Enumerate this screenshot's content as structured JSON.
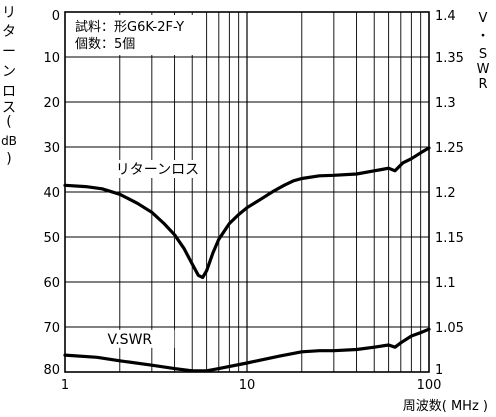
{
  "chart_data": {
    "type": "line",
    "x_scale": "log",
    "xlim": [
      1,
      100
    ],
    "ylim_left": [
      80,
      0
    ],
    "ylim_right": [
      1.0,
      1.4
    ],
    "ylabel_left_chars": [
      "リ",
      "タ",
      "ー",
      "ン",
      "ロ",
      "ス",
      "(",
      "dB",
      ")"
    ],
    "ylabel_right_chars": [
      "V",
      "・",
      "S",
      "W",
      "R"
    ],
    "xlabel": "周波数( MHz )",
    "x_ticks": [
      {
        "value": 1,
        "label": "1"
      },
      {
        "value": 10,
        "label": "10"
      },
      {
        "value": 100,
        "label": "100"
      }
    ],
    "y_ticks_left": [
      0,
      10,
      20,
      30,
      40,
      50,
      60,
      70,
      80
    ],
    "y_ticks_right": [
      "1.4",
      "1.35",
      "1.3",
      "1.25",
      "1.2",
      "1.15",
      "1.1",
      "1.05",
      "1"
    ],
    "legend_box": [
      "試料：形G6K-2F-Y",
      "個数：5個"
    ],
    "grid": true,
    "series": [
      {
        "name": "リターンロス",
        "axis": "left",
        "label_pos": [
          2.0,
          36
        ],
        "points": [
          [
            1.0,
            38.5
          ],
          [
            1.3,
            38.8
          ],
          [
            1.6,
            39.3
          ],
          [
            2.0,
            40.5
          ],
          [
            2.5,
            42.5
          ],
          [
            3.0,
            44.5
          ],
          [
            3.5,
            47.0
          ],
          [
            4.0,
            49.5
          ],
          [
            4.5,
            52.5
          ],
          [
            5.0,
            56.0
          ],
          [
            5.4,
            58.5
          ],
          [
            5.7,
            59.0
          ],
          [
            6.0,
            57.5
          ],
          [
            6.5,
            53.5
          ],
          [
            7.0,
            50.5
          ],
          [
            8.0,
            47.0
          ],
          [
            9.0,
            45.0
          ],
          [
            10.0,
            43.5
          ],
          [
            12.0,
            41.5
          ],
          [
            14.0,
            39.8
          ],
          [
            16.0,
            38.5
          ],
          [
            18.0,
            37.5
          ],
          [
            20.0,
            37.0
          ],
          [
            25.0,
            36.4
          ],
          [
            30.0,
            36.3
          ],
          [
            40.0,
            36.0
          ],
          [
            50.0,
            35.3
          ],
          [
            55.0,
            35.0
          ],
          [
            60.0,
            34.7
          ],
          [
            65.0,
            35.3
          ],
          [
            68.0,
            34.5
          ],
          [
            72.0,
            33.5
          ],
          [
            80.0,
            32.6
          ],
          [
            90.0,
            31.3
          ],
          [
            100.0,
            30.2
          ]
        ]
      },
      {
        "name": "V.SWR",
        "axis": "right",
        "label_pos": [
          1.8,
          1.0313
        ],
        "points": [
          [
            1.0,
            1.0188
          ],
          [
            1.5,
            1.0163
          ],
          [
            2.0,
            1.0125
          ],
          [
            3.0,
            1.0075
          ],
          [
            4.0,
            1.0038
          ],
          [
            5.0,
            1.0013
          ],
          [
            6.0,
            1.0013
          ],
          [
            7.0,
            1.0038
          ],
          [
            10.0,
            1.01
          ],
          [
            15.0,
            1.0175
          ],
          [
            20.0,
            1.0225
          ],
          [
            25.0,
            1.0237
          ],
          [
            30.0,
            1.0237
          ],
          [
            40.0,
            1.025
          ],
          [
            50.0,
            1.0275
          ],
          [
            60.0,
            1.03
          ],
          [
            65.0,
            1.0275
          ],
          [
            70.0,
            1.0325
          ],
          [
            80.0,
            1.04
          ],
          [
            90.0,
            1.0438
          ],
          [
            100.0,
            1.0475
          ]
        ]
      }
    ]
  }
}
